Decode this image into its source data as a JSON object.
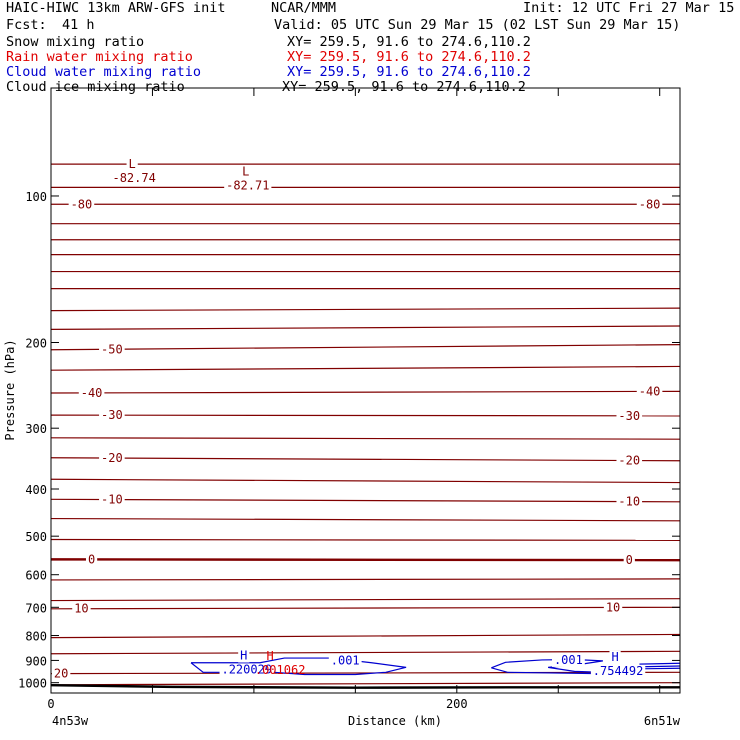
{
  "header": {
    "title_left": "HAIC-HIWC 13km ARW-GFS init",
    "org": "NCAR/MMM",
    "init": "Init: 12 UTC Fri 27 Mar 15",
    "fcst_label": "Fcst:",
    "fcst_value": "41 h",
    "valid": "Valid: 05 UTC Sun 29 Mar 15 (02 LST Sun 29 Mar 15)"
  },
  "fields": [
    {
      "name": "Snow mixing ratio",
      "xy": "XY= 259.5, 91.6 to 274.6,110.2",
      "color": "#000000"
    },
    {
      "name": "Rain water mixing ratio",
      "xy": "XY= 259.5, 91.6 to 274.6,110.2",
      "color": "#e00000"
    },
    {
      "name": "Cloud water mixing ratio",
      "xy": "XY= 259.5, 91.6 to 274.6,110.2",
      "color": "#0000d0"
    },
    {
      "name": "Cloud ice mixing ratio",
      "xy": "XY= 259.5, 91.6 to 274.6,110.2",
      "color": "#000000"
    }
  ],
  "chart_data": {
    "type": "line",
    "xlabel": "Distance (km)",
    "ylabel": "Pressure (hPa)",
    "xlim": [
      0,
      310
    ],
    "ylim": [
      1050,
      60
    ],
    "y_scale": "log",
    "x_ticks": [
      0,
      50,
      100,
      150,
      200,
      250,
      300
    ],
    "x_tick_labels": [
      "0",
      "200"
    ],
    "x_tick_label_values": [
      0,
      200
    ],
    "y_ticks": [
      100,
      200,
      300,
      400,
      500,
      600,
      700,
      800,
      900,
      1000
    ],
    "y_tick_labels": [
      "100",
      "200",
      "300",
      "400",
      "500",
      "600",
      "700",
      "800",
      "900",
      "1000"
    ],
    "endpoint_left": "4n53w",
    "endpoint_right": "6n51w",
    "colors": {
      "temperature": "#800000",
      "cloud_water": "#0000d0",
      "rain": "#e00000",
      "terrain": "#000000"
    },
    "isotherms": [
      {
        "y0": 86,
        "y1": 86
      },
      {
        "y0": 96,
        "y1": 96
      },
      {
        "y0": 104,
        "y1": 104,
        "label": "-80",
        "lx": [
          15,
          295
        ]
      },
      {
        "y0": 114,
        "y1": 114
      },
      {
        "y0": 123,
        "y1": 123
      },
      {
        "y0": 132,
        "y1": 132
      },
      {
        "y0": 143,
        "y1": 143
      },
      {
        "y0": 155,
        "y1": 155
      },
      {
        "y0": 172,
        "y1": 170
      },
      {
        "y0": 188,
        "y1": 185
      },
      {
        "y0": 207,
        "y1": 202,
        "label": "-50",
        "lx": [
          30
        ]
      },
      {
        "y0": 228,
        "y1": 224
      },
      {
        "y0": 254,
        "y1": 252,
        "label": "-40",
        "lx": [
          20,
          295
        ]
      },
      {
        "y0": 282,
        "y1": 283,
        "label": "-30",
        "lx": [
          30,
          285
        ]
      },
      {
        "y0": 314,
        "y1": 316
      },
      {
        "y0": 345,
        "y1": 350,
        "label": "-20",
        "lx": [
          30,
          285
        ]
      },
      {
        "y0": 382,
        "y1": 388
      },
      {
        "y0": 420,
        "y1": 425,
        "label": "-10",
        "lx": [
          30,
          285
        ]
      },
      {
        "y0": 460,
        "y1": 465
      },
      {
        "y0": 508,
        "y1": 510
      },
      {
        "y0": 558,
        "y1": 560,
        "label": "0",
        "lx": [
          20,
          285
        ],
        "bold": true
      },
      {
        "y0": 615,
        "y1": 612
      },
      {
        "y0": 678,
        "y1": 672
      },
      {
        "y0": 705,
        "y1": 700,
        "label": "10",
        "lx": [
          15,
          277
        ]
      },
      {
        "y0": 808,
        "y1": 796
      },
      {
        "y0": 872,
        "y1": 862
      },
      {
        "y0": 958,
        "y1": 952,
        "label": "20",
        "lx": [
          5,
          278
        ]
      },
      {
        "y0": 1010,
        "y1": 1000
      }
    ],
    "extrema": [
      {
        "type": "L",
        "value": "-82.74",
        "x": 40,
        "p": 86
      },
      {
        "type": "L",
        "value": "-82.71",
        "x": 96,
        "p": 89
      }
    ],
    "cloud_water": [
      {
        "label": ".001",
        "lx": 145,
        "lp": 900,
        "points": [
          [
            69,
            910
          ],
          [
            75,
            952
          ],
          [
            110,
            952
          ],
          [
            125,
            962
          ],
          [
            150,
            962
          ],
          [
            165,
            952
          ],
          [
            175,
            930
          ],
          [
            158,
            910
          ],
          [
            138,
            890
          ],
          [
            115,
            890
          ],
          [
            103,
            910
          ],
          [
            69,
            910
          ]
        ]
      },
      {
        "label": ".001",
        "lx": 255,
        "lp": 898,
        "points": [
          [
            217,
            932
          ],
          [
            224,
            908
          ],
          [
            242,
            898
          ],
          [
            258,
            896
          ],
          [
            272,
            902
          ],
          [
            260,
            918
          ],
          [
            245,
            930
          ],
          [
            258,
            948
          ],
          [
            290,
            958
          ],
          [
            280,
            958
          ],
          [
            270,
            958
          ],
          [
            225,
            952
          ],
          [
            217,
            932
          ]
        ]
      },
      {
        "label": "",
        "lx": 0,
        "lp": 0,
        "points": [
          [
            270,
            932
          ],
          [
            288,
            928
          ],
          [
            310,
            924
          ]
        ]
      },
      {
        "label": "",
        "lx": 0,
        "lp": 0,
        "points": [
          [
            275,
            938
          ],
          [
            295,
            936
          ],
          [
            310,
            934
          ]
        ]
      },
      {
        "label": "",
        "lx": 0,
        "lp": 0,
        "points": [
          [
            290,
            916
          ],
          [
            310,
            912
          ]
        ]
      }
    ],
    "cloud_water_maxima": [
      {
        "type": "H",
        "value": ".220029",
        "x": 95,
        "p": 922
      },
      {
        "type": "H",
        "value": ".754492",
        "x": 278,
        "p": 928
      }
    ],
    "rain_maxima": [
      {
        "type": "H",
        "value": ".001062",
        "x": 108,
        "p": 925
      }
    ],
    "terrain": [
      [
        0,
        1012
      ],
      [
        60,
        1020
      ],
      [
        150,
        1024
      ],
      [
        230,
        1022
      ],
      [
        310,
        1022
      ]
    ]
  }
}
